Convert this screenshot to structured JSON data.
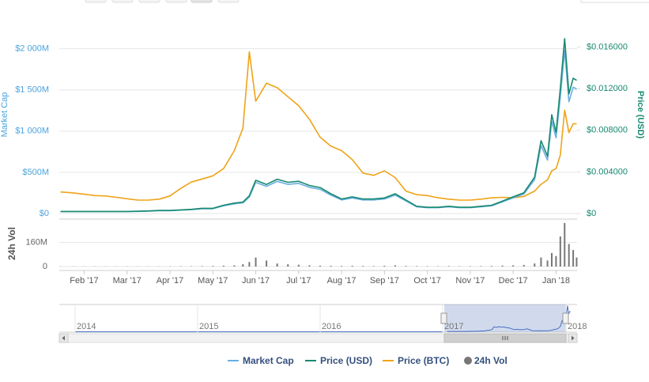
{
  "chart_data": {
    "type": "line",
    "y_label": "Market Cap",
    "y2_label": "Price (USD)",
    "vol_label": "24h Vol",
    "x": [
      0.45,
      0.75,
      1.0,
      1.25,
      1.5,
      1.75,
      2.0,
      2.25,
      2.5,
      2.75,
      3.0,
      3.25,
      3.5,
      3.75,
      4.0,
      4.25,
      4.5,
      4.7,
      4.85,
      5.0,
      5.25,
      5.5,
      5.75,
      6.0,
      6.25,
      6.5,
      6.75,
      7.0,
      7.25,
      7.5,
      7.75,
      8.0,
      8.25,
      8.5,
      8.75,
      9.0,
      9.25,
      9.5,
      9.75,
      10.0,
      10.25,
      10.5,
      10.75,
      11.0,
      11.25,
      11.5,
      11.65,
      11.8,
      11.9,
      12.0,
      12.1,
      12.2,
      12.3,
      12.4,
      12.48
    ],
    "xlim": [
      0.42,
      12.49
    ],
    "xticks": [
      {
        "value": 1,
        "label": "Feb '17"
      },
      {
        "value": 2,
        "label": "Mar '17"
      },
      {
        "value": 3,
        "label": "Apr '17"
      },
      {
        "value": 4,
        "label": "May '17"
      },
      {
        "value": 5,
        "label": "Jun '17"
      },
      {
        "value": 6,
        "label": "Jul '17"
      },
      {
        "value": 7,
        "label": "Aug '17"
      },
      {
        "value": 8,
        "label": "Sep '17"
      },
      {
        "value": 9,
        "label": "Oct '17"
      },
      {
        "value": 10,
        "label": "Nov '17"
      },
      {
        "value": 11,
        "label": "Dec '17"
      },
      {
        "value": 12,
        "label": "Jan '18"
      }
    ],
    "ylim": [
      0,
      2400000000
    ],
    "yticks": [
      {
        "value": 0,
        "label": "$0"
      },
      {
        "value": 500000000,
        "label": "$500M"
      },
      {
        "value": 1000000000,
        "label": "$1 000M"
      },
      {
        "value": 1500000000,
        "label": "$1 500M"
      },
      {
        "value": 2000000000,
        "label": "$2 000M"
      }
    ],
    "y2lim": [
      0,
      0.019
    ],
    "y2ticks": [
      {
        "value": 0,
        "label": "$0"
      },
      {
        "value": 0.004,
        "label": "$0.004000"
      },
      {
        "value": 0.008,
        "label": "$0.008000"
      },
      {
        "value": 0.012,
        "label": "$0.012000"
      },
      {
        "value": 0.016,
        "label": "$0.016000"
      }
    ],
    "y3lim": [
      0,
      4.4e-07
    ],
    "vol_ylim": [
      0,
      300000000
    ],
    "vol_yticks": [
      0,
      {
        "value": 160000000,
        "label": "160M"
      }
    ],
    "grid": true,
    "legend": "bottom",
    "series": [
      {
        "name": "Market Cap",
        "color": "#6aaee0",
        "axis": "y",
        "values": [
          24000000,
          24000000,
          24000000,
          24000000,
          24000000,
          24000000,
          24000000,
          26000000,
          30000000,
          35000000,
          35000000,
          41000000,
          47000000,
          59000000,
          59000000,
          94000000,
          118000000,
          130000000,
          200000000,
          378000000,
          330000000,
          390000000,
          354000000,
          366000000,
          319000000,
          295000000,
          224000000,
          165000000,
          189000000,
          165000000,
          165000000,
          177000000,
          224000000,
          153000000,
          83000000,
          71000000,
          71000000,
          83000000,
          71000000,
          71000000,
          83000000,
          94000000,
          142000000,
          189000000,
          236000000,
          413000000,
          826000000,
          649000000,
          1121000000,
          920000000,
          1416000000,
          1982000000,
          1357000000,
          1534000000,
          1510000000
        ]
      },
      {
        "name": "Price (USD)",
        "color": "#17896f",
        "axis": "y2",
        "values": [
          0.0002,
          0.0002,
          0.0002,
          0.0002,
          0.0002,
          0.0002,
          0.0002,
          0.00022,
          0.00025,
          0.0003,
          0.0003,
          0.00035,
          0.0004,
          0.0005,
          0.0005,
          0.0008,
          0.001,
          0.0011,
          0.0017,
          0.0032,
          0.0028,
          0.0033,
          0.003,
          0.0031,
          0.0027,
          0.0025,
          0.0019,
          0.0014,
          0.0016,
          0.0014,
          0.0014,
          0.0015,
          0.0019,
          0.0013,
          0.0007,
          0.0006,
          0.0006,
          0.0007,
          0.0006,
          0.0006,
          0.0007,
          0.0008,
          0.0012,
          0.0016,
          0.002,
          0.0035,
          0.007,
          0.0055,
          0.0095,
          0.0078,
          0.012,
          0.0168,
          0.0115,
          0.013,
          0.0128
        ]
      },
      {
        "name": "Price (BTC)",
        "color": "#f0a317",
        "axis": "y3",
        "values": [
          4.8e-08,
          4.6e-08,
          4.3e-08,
          4e-08,
          3.9e-08,
          3.6e-08,
          3.3e-08,
          3e-08,
          3e-08,
          3.2e-08,
          3.9e-08,
          5.6e-08,
          7e-08,
          7.7e-08,
          8.4e-08,
          1e-07,
          1.4e-07,
          1.9e-07,
          3.6e-07,
          2.5e-07,
          2.9e-07,
          2.8e-07,
          2.6e-07,
          2.4e-07,
          2.1e-07,
          1.7e-07,
          1.5e-07,
          1.4e-07,
          1.2e-07,
          9e-08,
          8.5e-08,
          9.5e-08,
          8e-08,
          5e-08,
          4.2e-08,
          4e-08,
          3.5e-08,
          3.2e-08,
          3e-08,
          3e-08,
          3.2e-08,
          3.5e-08,
          3.6e-08,
          3.5e-08,
          3.8e-08,
          5e-08,
          6.5e-08,
          7.5e-08,
          9.5e-08,
          1e-07,
          1.3e-07,
          2.3e-07,
          1.8e-07,
          2e-07,
          2e-07
        ]
      },
      {
        "name": "24h Vol",
        "color": "#777777",
        "axis": "vol",
        "values": [
          1000000,
          1000000,
          1000000,
          1000000,
          1000000,
          1000000,
          1000000,
          1000000,
          1000000,
          1000000,
          1500000,
          2000000,
          2000000,
          3000000,
          4000000,
          6000000,
          8000000,
          15000000,
          30000000,
          60000000,
          40000000,
          20000000,
          15000000,
          12000000,
          8000000,
          6000000,
          5000000,
          4000000,
          5000000,
          4000000,
          3000000,
          5000000,
          8000000,
          4000000,
          3000000,
          2000000,
          2000000,
          3000000,
          2000000,
          2000000,
          3000000,
          4000000,
          6000000,
          8000000,
          10000000,
          20000000,
          60000000,
          40000000,
          90000000,
          70000000,
          200000000,
          290000000,
          150000000,
          110000000,
          60000000
        ]
      }
    ],
    "navigator_labels": [
      "2014",
      "2015",
      "2016",
      "2017",
      "2018"
    ]
  }
}
